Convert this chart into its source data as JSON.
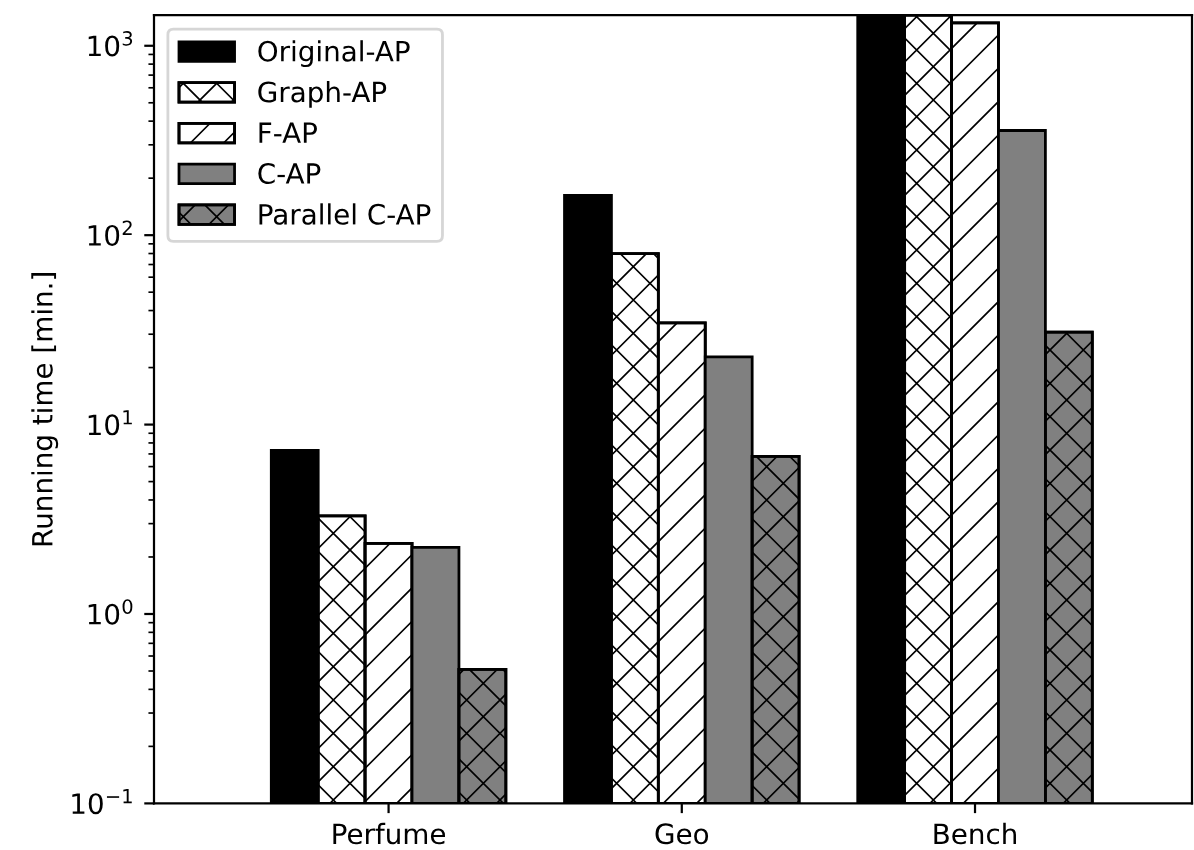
{
  "chart_data": {
    "type": "bar",
    "ylabel": "Running time [min.]",
    "categories": [
      "Perfume",
      "Geo",
      "Bench"
    ],
    "log": "y",
    "ylim": [
      0.1,
      1450
    ],
    "yticks": [
      {
        "value": 0.1,
        "label": "10$^{−1}$"
      },
      {
        "value": 1,
        "label": "10$^{0}$"
      },
      {
        "value": 10,
        "label": "10$^{1}$"
      },
      {
        "value": 100,
        "label": "10$^{2}$"
      },
      {
        "value": 1000,
        "label": "10$^{3}$"
      }
    ],
    "grid": false,
    "legend": "top left",
    "series": [
      {
        "name": "Original-AP",
        "color": "#000000",
        "values": [
          7.3,
          162,
          1450
        ]
      },
      {
        "name": "Graph-AP",
        "color": "#ffffff",
        "values": [
          3.3,
          80,
          1450
        ]
      },
      {
        "name": "F-AP",
        "color": "#ffffff",
        "values": [
          2.36,
          34.4,
          1320
        ]
      },
      {
        "name": "C-AP",
        "color": "#808080",
        "values": [
          2.25,
          22.8,
          357
        ]
      },
      {
        "name": "Parallel C-AP",
        "color": "#808080",
        "values": [
          0.51,
          6.8,
          30.8
        ]
      }
    ]
  }
}
